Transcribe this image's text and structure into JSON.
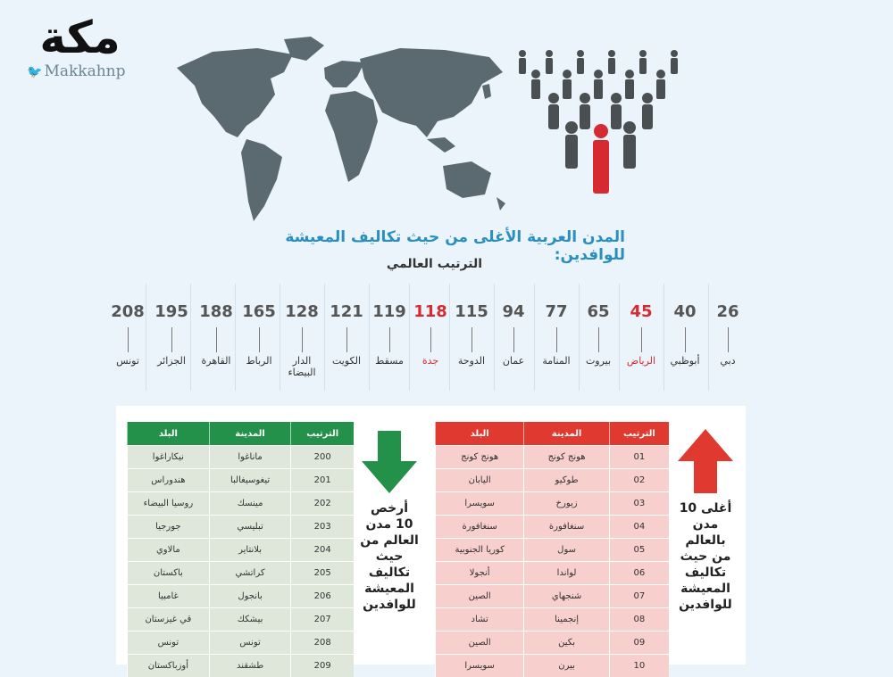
{
  "logo": {
    "mark": "مكة",
    "handle": "Makkahnp"
  },
  "title": "المدن العربية الأغلى من حيث تكاليف المعيشة للوافدين:",
  "subtitle": "الترتيب العالمي",
  "ranks": [
    {
      "rank": "26",
      "city": "دبي",
      "highlight": false
    },
    {
      "rank": "40",
      "city": "أبوظبي",
      "highlight": false
    },
    {
      "rank": "45",
      "city": "الرياض",
      "highlight": true
    },
    {
      "rank": "65",
      "city": "بيروت",
      "highlight": false
    },
    {
      "rank": "77",
      "city": "المنامة",
      "highlight": false
    },
    {
      "rank": "94",
      "city": "عمان",
      "highlight": false
    },
    {
      "rank": "115",
      "city": "الدوحة",
      "highlight": false
    },
    {
      "rank": "118",
      "city": "جدة",
      "highlight": true
    },
    {
      "rank": "119",
      "city": "مسقط",
      "highlight": false
    },
    {
      "rank": "121",
      "city": "الكويت",
      "highlight": false
    },
    {
      "rank": "128",
      "city": "الدار البيضاء",
      "highlight": false
    },
    {
      "rank": "165",
      "city": "الرباط",
      "highlight": false
    },
    {
      "rank": "188",
      "city": "القاهرة",
      "highlight": false
    },
    {
      "rank": "195",
      "city": "الجزائر",
      "highlight": false
    },
    {
      "rank": "208",
      "city": "تونس",
      "highlight": false
    }
  ],
  "cheapest": {
    "label": "أرخص 10 مدن العالم من حيث تكاليف المعيشة للوافدين",
    "headers": {
      "rank": "الترتيب",
      "city": "المدينة",
      "country": "البلد"
    },
    "rows": [
      {
        "rank": "200",
        "city": "ماناغوا",
        "country": "نيكاراغوا"
      },
      {
        "rank": "201",
        "city": "تيغوسيغالبا",
        "country": "هندوراس"
      },
      {
        "rank": "202",
        "city": "مينسك",
        "country": "روسيا البيضاء"
      },
      {
        "rank": "203",
        "city": "تبليسي",
        "country": "جورجيا"
      },
      {
        "rank": "204",
        "city": "بلانتاير",
        "country": "مالاوي"
      },
      {
        "rank": "205",
        "city": "كراتشي",
        "country": "باكستان"
      },
      {
        "rank": "206",
        "city": "بانجول",
        "country": "غامبيا"
      },
      {
        "rank": "207",
        "city": "بيشكك",
        "country": "قي غيزستان"
      },
      {
        "rank": "208",
        "city": "تونس",
        "country": "تونس"
      },
      {
        "rank": "209",
        "city": "طشقند",
        "country": "أوزباكستان"
      }
    ]
  },
  "costliest": {
    "label": "أغلى 10 مدن بالعالم من حيث تكاليف المعيشة للوافدين",
    "headers": {
      "rank": "الترتيب",
      "city": "المدينة",
      "country": "البلد"
    },
    "rows": [
      {
        "rank": "01",
        "city": "هونج كونج",
        "country": "هونج كونج"
      },
      {
        "rank": "02",
        "city": "طوكيو",
        "country": "اليابان"
      },
      {
        "rank": "03",
        "city": "زيورخ",
        "country": "سويسرا"
      },
      {
        "rank": "04",
        "city": "سنغافورة",
        "country": "سنغافورة"
      },
      {
        "rank": "05",
        "city": "سول",
        "country": "كوريا الجنوبية"
      },
      {
        "rank": "06",
        "city": "لواندا",
        "country": "أنجولا"
      },
      {
        "rank": "07",
        "city": "شنجهاي",
        "country": "الصين"
      },
      {
        "rank": "08",
        "city": "إنجمينا",
        "country": "تشاد"
      },
      {
        "rank": "09",
        "city": "بكين",
        "country": "الصين"
      },
      {
        "rank": "10",
        "city": "بيرن",
        "country": "سويسرا"
      }
    ]
  },
  "colors": {
    "accent_blue": "#2a8fbf",
    "highlight_red": "#d62a32",
    "green": "#23914a",
    "red": "#e0392f"
  }
}
